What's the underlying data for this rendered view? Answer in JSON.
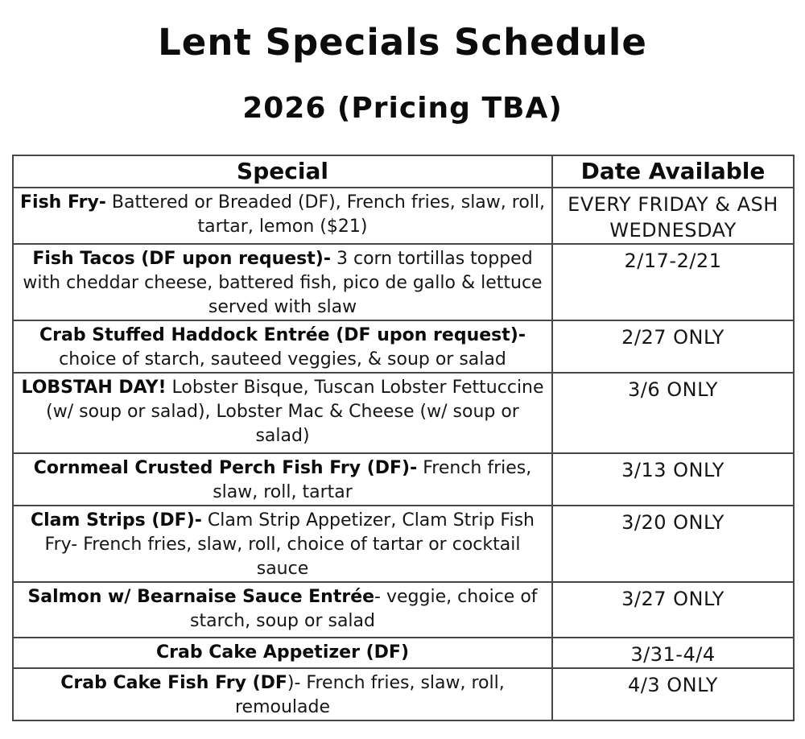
{
  "title": "Lent Specials Schedule",
  "subtitle": "2026 (Pricing TBA)",
  "table": {
    "headers": {
      "special": "Special",
      "date": "Date Available"
    },
    "rows": [
      {
        "bold": "Fish Fry-",
        "rest": " Battered or Breaded (DF), French fries, slaw, roll, tartar, lemon ($21)",
        "date": "EVERY FRIDAY & ASH WEDNESDAY"
      },
      {
        "bold": "Fish Tacos (DF upon request)-",
        "rest": " 3 corn tortillas topped with cheddar cheese, battered fish, pico de gallo & lettuce served with slaw",
        "date": "2/17-2/21"
      },
      {
        "bold": "Crab Stuffed Haddock Entrée (DF upon request)-",
        "rest": " choice of starch, sauteed veggies, & soup or salad",
        "date": "2/27 ONLY"
      },
      {
        "bold": "LOBSTAH DAY!",
        "rest": " Lobster Bisque, Tuscan Lobster Fettuccine (w/ soup or salad), Lobster Mac & Cheese (w/ soup or salad)",
        "date": "3/6 ONLY"
      },
      {
        "bold": "Cornmeal Crusted Perch Fish Fry (DF)-",
        "rest": " French fries, slaw, roll, tartar",
        "date": "3/13 ONLY"
      },
      {
        "bold": "Clam Strips (DF)-",
        "rest": " Clam Strip Appetizer, Clam Strip Fish Fry- French fries, slaw, roll, choice of tartar or cocktail sauce",
        "date": "3/20 ONLY"
      },
      {
        "bold": "Salmon w/ Bearnaise Sauce Entrée",
        "rest": "- veggie, choice of starch, soup or salad",
        "date": "3/27 ONLY"
      },
      {
        "bold": "Crab Cake Appetizer (DF)",
        "rest": "",
        "date": "3/31-4/4"
      },
      {
        "bold": "Crab Cake Fish Fry (DF",
        "rest": ")- French fries, slaw, roll, remoulade",
        "date": "4/3 ONLY"
      }
    ]
  },
  "colors": {
    "text": "#111111",
    "border": "#474747",
    "background": "#ffffff"
  }
}
